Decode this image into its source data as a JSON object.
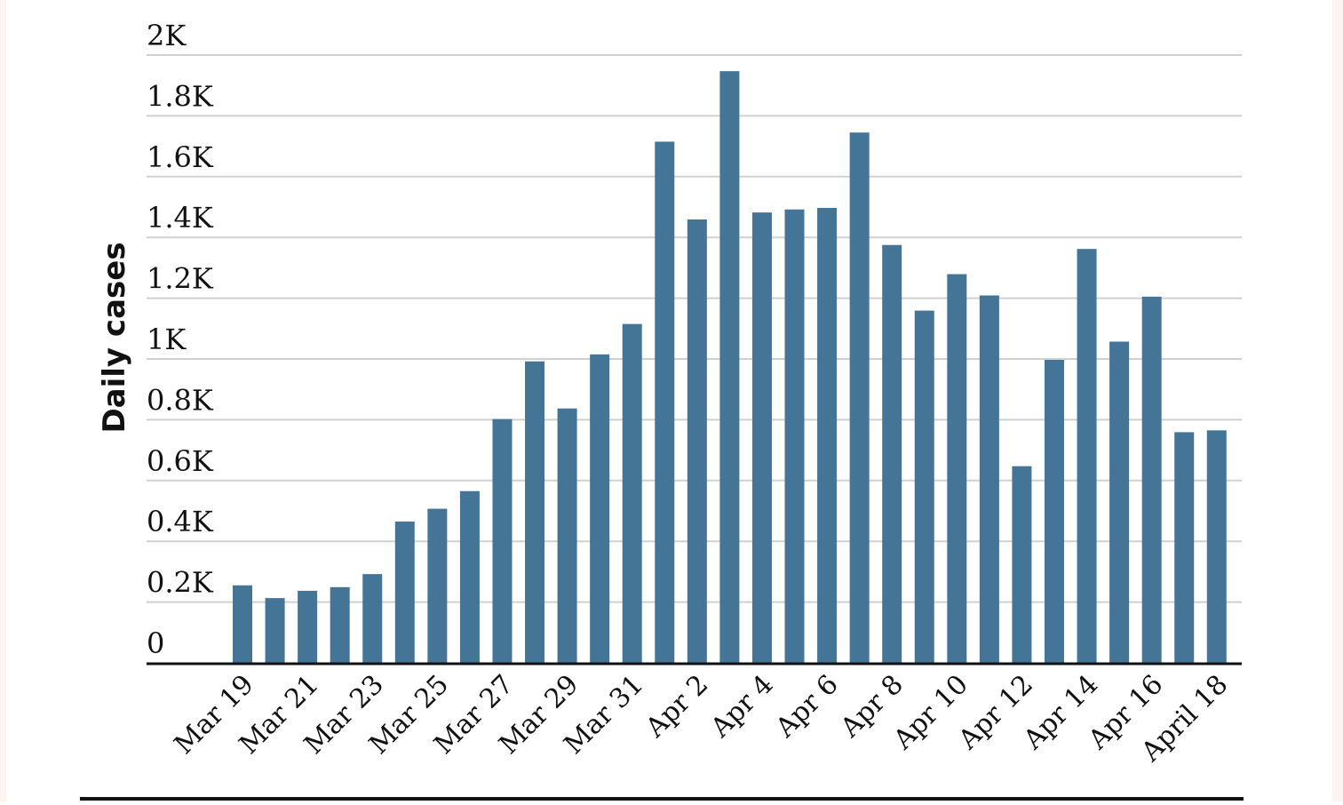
{
  "chart_data": {
    "type": "bar",
    "ylabel": "Daily cases",
    "xlabel": "",
    "title": "",
    "ylim": [
      0,
      2000
    ],
    "y_ticks": [
      "0",
      "0.2K",
      "0.4K",
      "0.6K",
      "0.8K",
      "1K",
      "1.2K",
      "1.4K",
      "1.6K",
      "1.8K",
      "2K"
    ],
    "x_tick_labels": [
      "Mar 19",
      "Mar 21",
      "Mar 23",
      "Mar 25",
      "Mar 27",
      "Mar 29",
      "Mar 31",
      "Apr 2",
      "Apr 4",
      "Apr 6",
      "Apr 8",
      "Apr 10",
      "Apr 12",
      "Apr 14",
      "Apr 16",
      "April 18"
    ],
    "grid": true,
    "bar_color": "#457596",
    "categories": [
      "Mar 19",
      "Mar 20",
      "Mar 21",
      "Mar 22",
      "Mar 23",
      "Mar 24",
      "Mar 25",
      "Mar 26",
      "Mar 27",
      "Mar 28",
      "Mar 29",
      "Mar 30",
      "Mar 31",
      "Apr 1",
      "Apr 2",
      "Apr 3",
      "Apr 4",
      "Apr 5",
      "Apr 6",
      "Apr 7",
      "Apr 8",
      "Apr 9",
      "Apr 10",
      "Apr 11",
      "Apr 12",
      "Apr 13",
      "Apr 14",
      "Apr 15",
      "Apr 16",
      "Apr 17",
      "April 18"
    ],
    "values": [
      258,
      216,
      240,
      252,
      295,
      468,
      510,
      568,
      805,
      995,
      840,
      1018,
      1118,
      1718,
      1462,
      1950,
      1485,
      1495,
      1500,
      1748,
      1378,
      1162,
      1282,
      1212,
      650,
      1000,
      1365,
      1060,
      1208,
      762,
      768
    ]
  }
}
